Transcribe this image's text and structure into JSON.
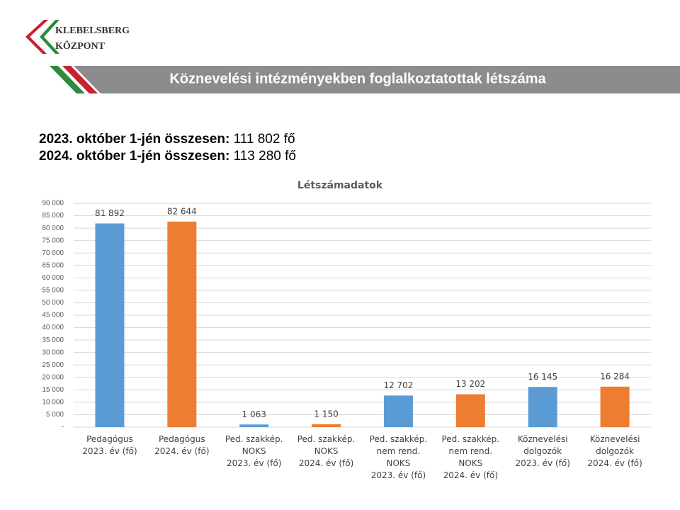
{
  "logo": {
    "line1": "KLEBELSBERG",
    "line2": "KÖZPONT"
  },
  "header": {
    "title": "Köznevelési intézményekben foglalkoztatottak létszáma"
  },
  "summary": [
    {
      "label": "2023. október 1-jén összesen:",
      "value": "111 802 fő"
    },
    {
      "label": "2024. október 1-jén összesen:",
      "value": "113 280 fő"
    }
  ],
  "chart_data": {
    "type": "bar",
    "title": "Létszámadatok",
    "categories": [
      "Pedagógus\n2023. év (fő)",
      "Pedagógus\n2024. év (fő)",
      "Ped. szakkép.\nNOKS\n2023. év (fő)",
      "Ped. szakkép.\nNOKS\n2024. év (fő)",
      "Ped. szakkép.\nnem rend.\nNOKS\n2023. év (fő)",
      "Ped. szakkép.\nnem rend.\nNOKS\n2024. év (fő)",
      "Köznevelési\ndolgozók\n2023. év (fő)",
      "Köznevelési\ndolgozók\n2024. év (fő)"
    ],
    "values": [
      81892,
      82644,
      1063,
      1150,
      12702,
      13202,
      16145,
      16284
    ],
    "value_labels": [
      "81 892",
      "82 644",
      "1 063",
      "1 150",
      "12 702",
      "13 202",
      "16 145",
      "16 284"
    ],
    "colors": [
      "#5b9bd5",
      "#ed7d31",
      "#5b9bd5",
      "#ed7d31",
      "#5b9bd5",
      "#ed7d31",
      "#5b9bd5",
      "#ed7d31"
    ],
    "ylim": [
      0,
      90000
    ],
    "yticks": [
      {
        "value": 0,
        "label": "-"
      },
      {
        "value": 5000,
        "label": "5 000"
      },
      {
        "value": 10000,
        "label": "10 000"
      },
      {
        "value": 15000,
        "label": "15 000"
      },
      {
        "value": 20000,
        "label": "20 000"
      },
      {
        "value": 25000,
        "label": "25 000"
      },
      {
        "value": 30000,
        "label": "30 000"
      },
      {
        "value": 35000,
        "label": "35 000"
      },
      {
        "value": 40000,
        "label": "40 000"
      },
      {
        "value": 45000,
        "label": "45 000"
      },
      {
        "value": 50000,
        "label": "50 000"
      },
      {
        "value": 55000,
        "label": "55 000"
      },
      {
        "value": 60000,
        "label": "60 000"
      },
      {
        "value": 65000,
        "label": "65 000"
      },
      {
        "value": 70000,
        "label": "70 000"
      },
      {
        "value": 75000,
        "label": "75 000"
      },
      {
        "value": 80000,
        "label": "80 000"
      },
      {
        "value": 85000,
        "label": "85 000"
      },
      {
        "value": 90000,
        "label": "90 000"
      }
    ],
    "grid": true
  }
}
